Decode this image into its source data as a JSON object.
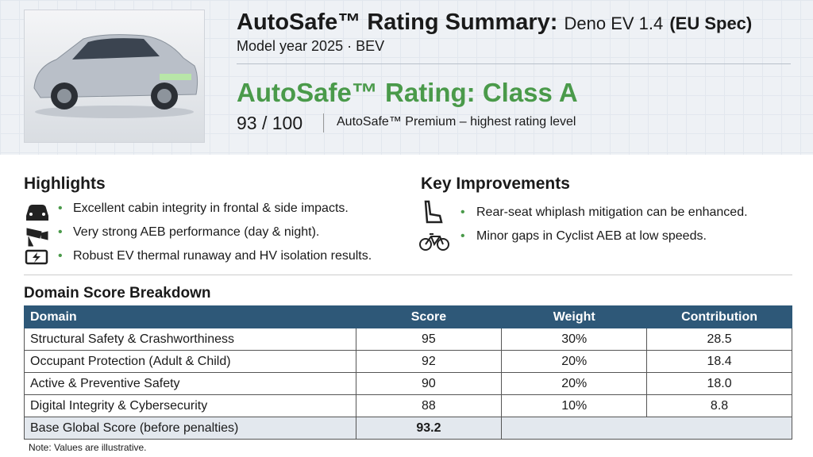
{
  "header": {
    "title": "AutoSafe™ Rating Summary:",
    "model": "Deno EV 1.4",
    "spec": "(EU Spec)",
    "subtitle": "Model year 2025 · BEV",
    "rating": "AutoSafe™ Rating: Class A",
    "score": "93 / 100",
    "rating_note": "AutoSafe™ Premium – highest rating level"
  },
  "highlights": {
    "title": "Highlights",
    "items": [
      "Excellent cabin integrity in frontal & side impacts.",
      "Very strong AEB performance (day & night).",
      "Robust EV thermal runaway and HV isolation results."
    ]
  },
  "improvements": {
    "title": "Key Improvements",
    "items": [
      "Rear-seat whiplash mitigation can be enhanced.",
      "Minor gaps in Cyclist AEB at low speeds."
    ]
  },
  "table": {
    "title": "Domain Score Breakdown",
    "columns": [
      "Domain",
      "Score",
      "Weight",
      "Contribution"
    ],
    "rows": [
      [
        "Structural Safety & Crashworthiness",
        "95",
        "30%",
        "28.5"
      ],
      [
        "Occupant Protection (Adult & Child)",
        "92",
        "20%",
        "18.4"
      ],
      [
        "Active & Preventive Safety",
        "90",
        "20%",
        "18.0"
      ],
      [
        "Digital Integrity & Cybersecurity",
        "88",
        "10%",
        "8.8"
      ]
    ],
    "total": [
      "Base Global Score (before penalties)",
      "93.2"
    ],
    "note": "Note: Values are illustrative."
  }
}
